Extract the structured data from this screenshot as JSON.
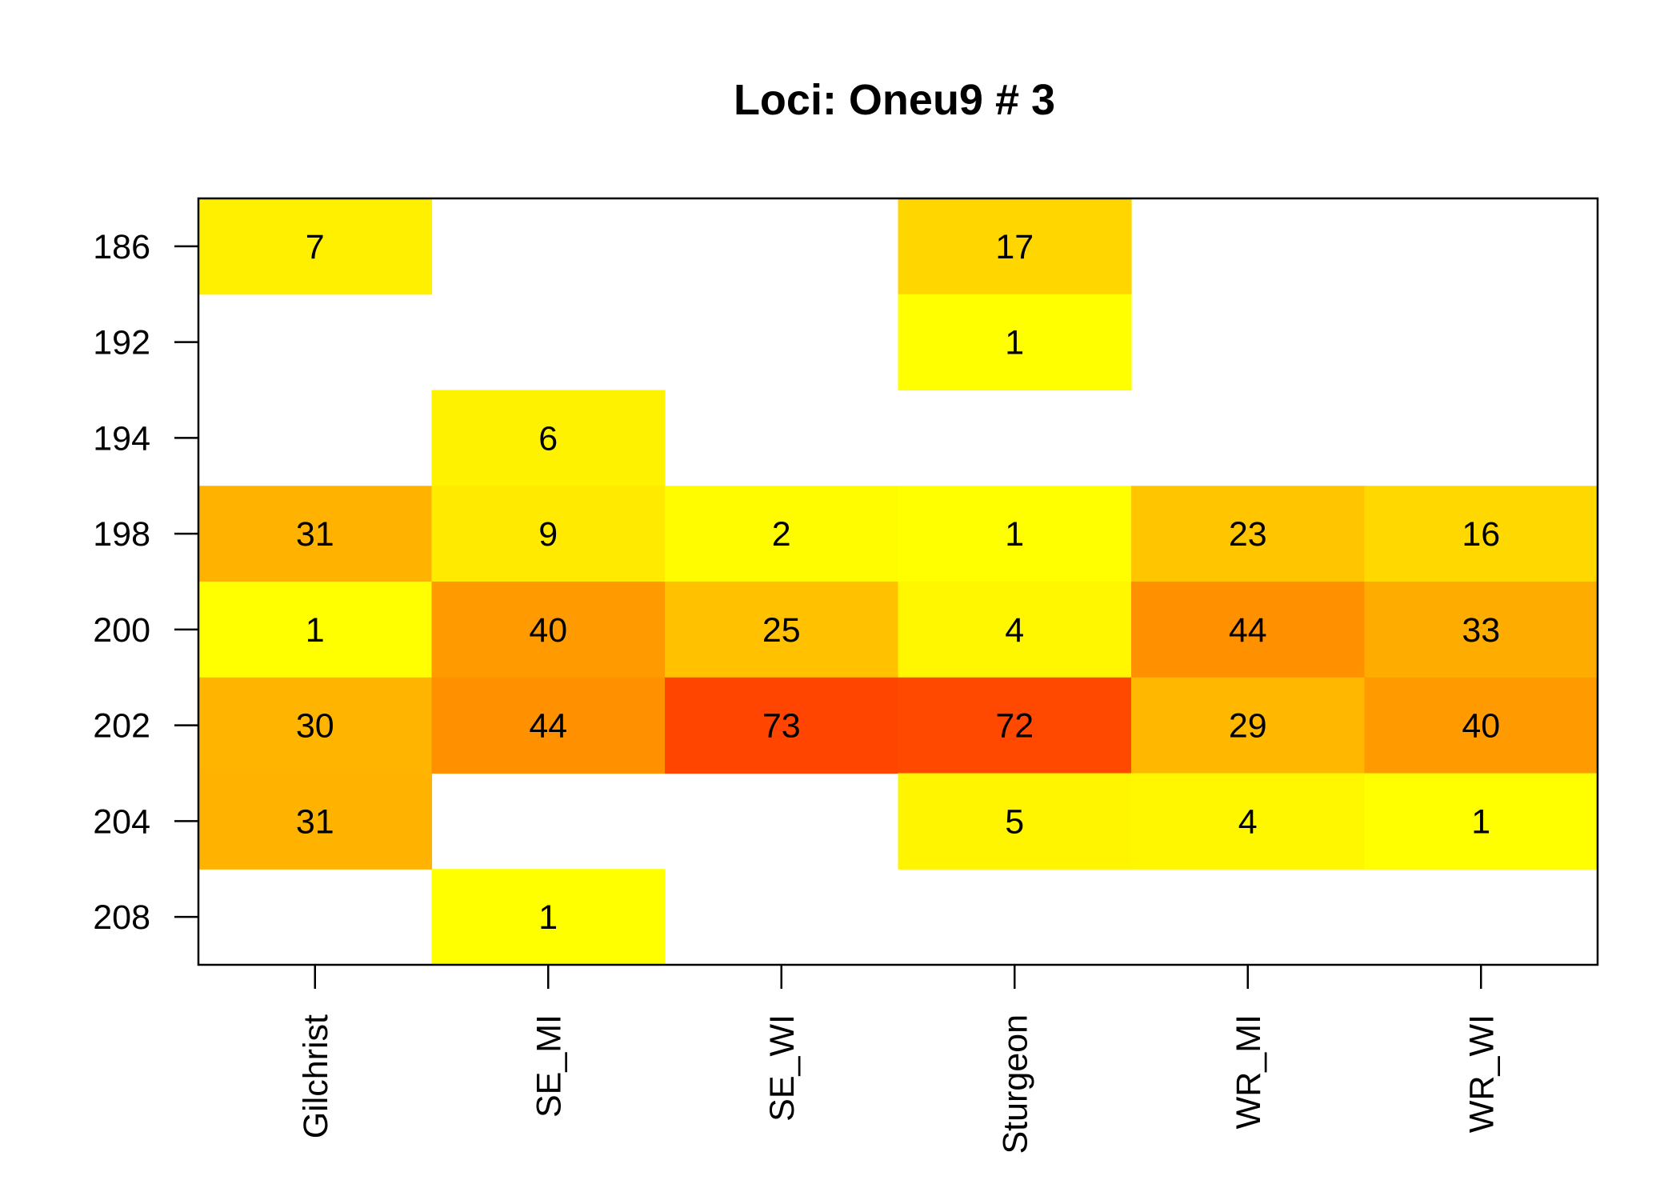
{
  "chart_data": {
    "type": "heatmap",
    "title": "Loci: Oneu9 # 3",
    "xlabel": "",
    "ylabel": "",
    "x_categories": [
      "Gilchrist",
      "SE_MI",
      "SE_WI",
      "Sturgeon",
      "WR_MI",
      "WR_WI"
    ],
    "y_categories": [
      "186",
      "192",
      "194",
      "198",
      "200",
      "202",
      "204",
      "208"
    ],
    "values": [
      [
        7,
        null,
        null,
        17,
        null,
        null
      ],
      [
        null,
        null,
        null,
        1,
        null,
        null
      ],
      [
        null,
        6,
        null,
        null,
        null,
        null
      ],
      [
        31,
        9,
        2,
        1,
        23,
        16
      ],
      [
        1,
        40,
        25,
        4,
        44,
        33
      ],
      [
        30,
        44,
        73,
        72,
        29,
        40
      ],
      [
        31,
        null,
        null,
        5,
        4,
        1
      ],
      [
        null,
        1,
        null,
        null,
        null,
        null
      ]
    ],
    "color_scale": {
      "palette": "heat",
      "low": "#FFFF00",
      "high": "#FF4500",
      "empty": "#FFFFFF"
    },
    "legend": "none",
    "grid": false
  }
}
